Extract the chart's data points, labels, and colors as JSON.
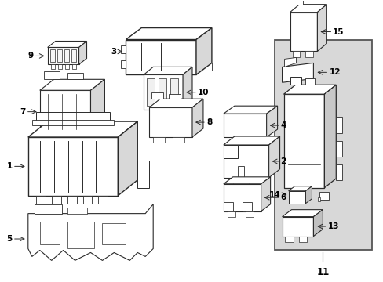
{
  "background_color": "#ffffff",
  "line_color": "#2a2a2a",
  "box11_fill": "#d8d8d8",
  "figsize": [
    4.89,
    3.6
  ],
  "dpi": 100
}
